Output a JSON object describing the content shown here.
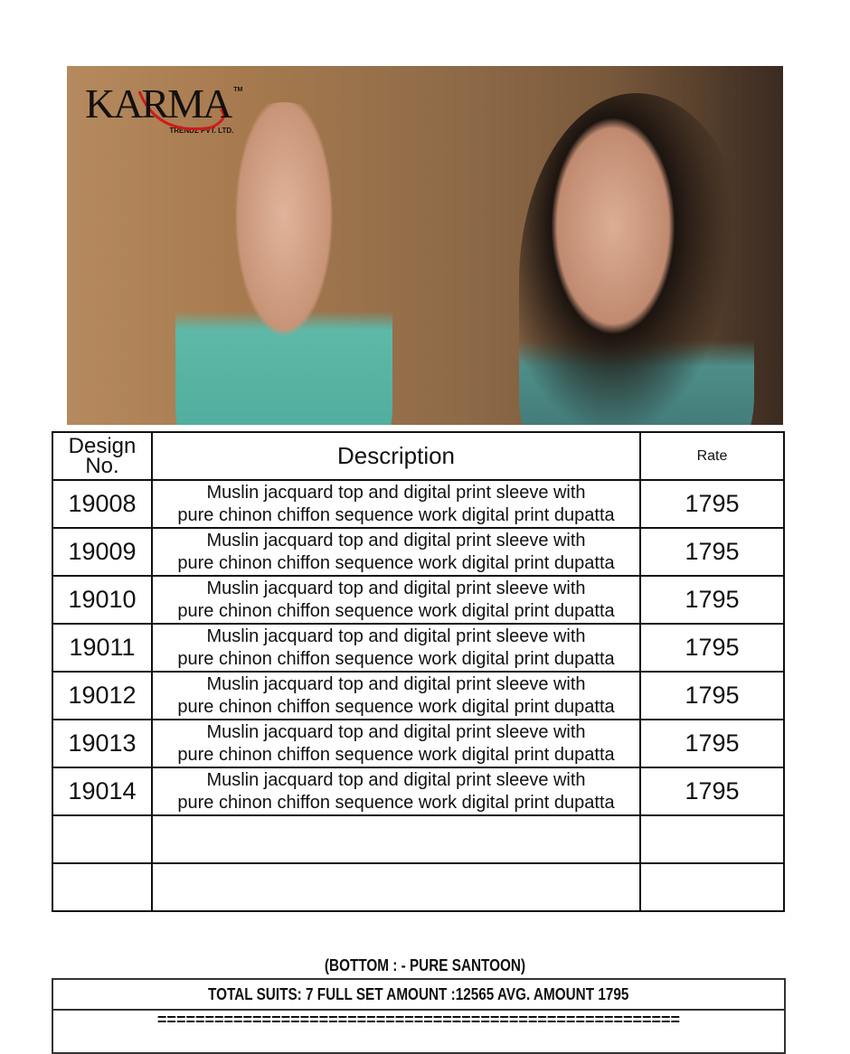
{
  "brand": {
    "logo_text": "KARMA",
    "logo_sub": "TRENDZ PVT. LTD.",
    "tm": "TM"
  },
  "table": {
    "headers": {
      "design_no": "Design No.",
      "description": "Description",
      "rate": "Rate"
    },
    "rows": [
      {
        "design_no": "19008",
        "desc_line1": "Muslin jacquard top and digital print sleeve with",
        "desc_line2": "pure chinon chiffon sequence work digital print dupatta",
        "rate": "1795"
      },
      {
        "design_no": "19009",
        "desc_line1": "Muslin jacquard top and digital print sleeve with",
        "desc_line2": "pure chinon chiffon sequence work digital print dupatta",
        "rate": "1795"
      },
      {
        "design_no": "19010",
        "desc_line1": "Muslin jacquard top and digital print sleeve with",
        "desc_line2": "pure chinon chiffon sequence work digital print dupatta",
        "rate": "1795"
      },
      {
        "design_no": "19011",
        "desc_line1": "Muslin jacquard top and digital print sleeve with",
        "desc_line2": "pure chinon chiffon sequence work digital print dupatta",
        "rate": "1795"
      },
      {
        "design_no": "19012",
        "desc_line1": "Muslin jacquard top and digital print sleeve with",
        "desc_line2": "pure chinon chiffon sequence work digital print dupatta",
        "rate": "1795"
      },
      {
        "design_no": "19013",
        "desc_line1": "Muslin jacquard top and digital print sleeve with",
        "desc_line2": "pure chinon chiffon sequence work digital print dupatta",
        "rate": "1795"
      },
      {
        "design_no": "19014",
        "desc_line1": "Muslin jacquard top and digital print sleeve with",
        "desc_line2": "pure chinon chiffon sequence work digital print dupatta",
        "rate": "1795"
      }
    ]
  },
  "footer": {
    "bottom_note": "(BOTTOM : - PURE  SANTOON)",
    "totals": "TOTAL SUITS: 7 FULL SET AMOUNT :12565  AVG.  AMOUNT 1795",
    "separator": "======================================================="
  }
}
